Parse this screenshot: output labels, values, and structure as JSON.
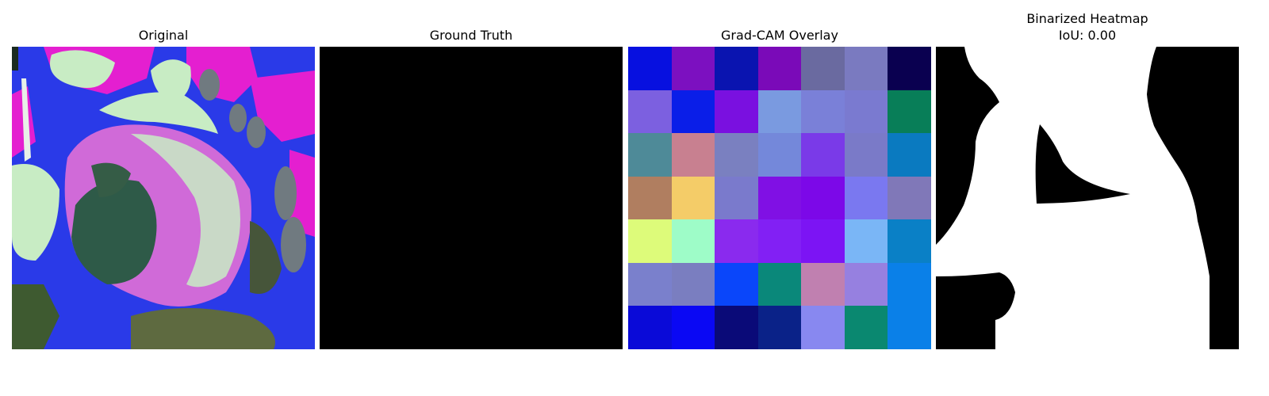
{
  "panels": {
    "original": {
      "title": "Original"
    },
    "ground_truth": {
      "title": "Ground Truth"
    },
    "gradcam": {
      "title": "Grad-CAM Overlay",
      "cells": [
        [
          "#0710e0",
          "#7c10c0",
          "#0a14b0",
          "#7a0ab8",
          "#6a6aa0",
          "#7a7ac0",
          "#0a0050"
        ],
        [
          "#7c60e0",
          "#0a1ee8",
          "#7a10e0",
          "#7a9ae0",
          "#7a80d8",
          "#7a7ad0",
          "#087e58"
        ],
        [
          "#4e8a98",
          "#c88090",
          "#7a80c0",
          "#7488da",
          "#7a3ae8",
          "#7a7ac8",
          "#0a7ac0"
        ],
        [
          "#b07e60",
          "#f4cc68",
          "#7a7acc",
          "#8010e4",
          "#7c08e8",
          "#7a78f0",
          "#8078b8"
        ],
        [
          "#ddfb7a",
          "#9efcc8",
          "#8a2aee",
          "#8220f4",
          "#7c14f4",
          "#7ab6f6",
          "#0a80c6"
        ],
        [
          "#7a80cc",
          "#7a7ec0",
          "#0a46fa",
          "#0a887a",
          "#c080b0",
          "#9680e0",
          "#0a80e8"
        ],
        [
          "#0a0ad8",
          "#0a08f4",
          "#0a0a78",
          "#0a2288",
          "#8888f0",
          "#0a8870",
          "#0a80e8"
        ]
      ]
    },
    "binarized": {
      "title_line1": "Binarized Heatmap",
      "title_line2": "IoU: 0.00"
    }
  },
  "colors": {
    "mask_foreground": "#ffffff",
    "mask_background": "#000000",
    "ground_truth": "#000000"
  }
}
